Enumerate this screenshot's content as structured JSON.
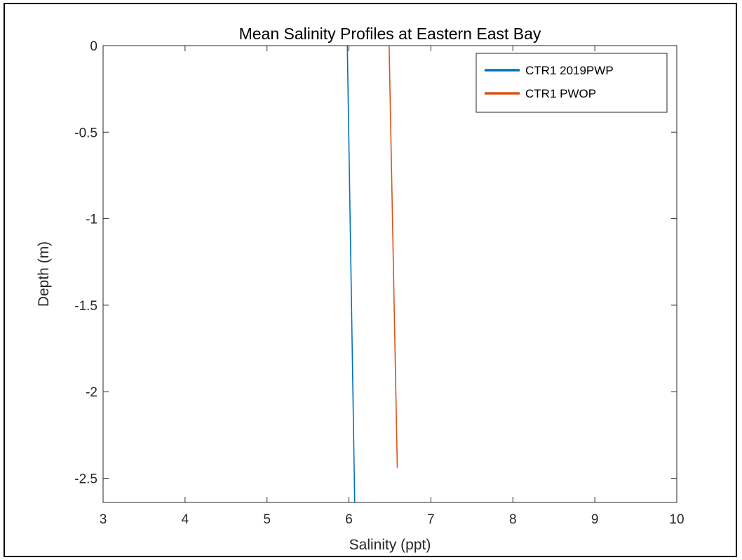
{
  "chart_data": {
    "type": "line",
    "title": "Mean Salinity Profiles at Eastern East Bay",
    "xlabel": "Salinity (ppt)",
    "ylabel": "Depth (m)",
    "xlim": [
      3,
      10
    ],
    "ylim": [
      -2.64,
      0
    ],
    "xticks": [
      3,
      4,
      5,
      6,
      7,
      8,
      9,
      10
    ],
    "xtick_labels": [
      "3",
      "4",
      "5",
      "6",
      "7",
      "8",
      "9",
      "10"
    ],
    "yticks": [
      0,
      -0.5,
      -1,
      -1.5,
      -2,
      -2.5
    ],
    "ytick_labels": [
      "0",
      "-0.5",
      "-1",
      "-1.5",
      "-2",
      "-2.5"
    ],
    "grid": false,
    "legend_position": "top-right",
    "series": [
      {
        "name": "CTR1 2019PWP",
        "color": "#0072BD",
        "x": [
          5.98,
          6.07
        ],
        "y": [
          0,
          -2.64
        ]
      },
      {
        "name": "CTR1 PWOP",
        "color": "#D95319",
        "x": [
          6.49,
          6.59
        ],
        "y": [
          0,
          -2.44
        ]
      }
    ]
  }
}
